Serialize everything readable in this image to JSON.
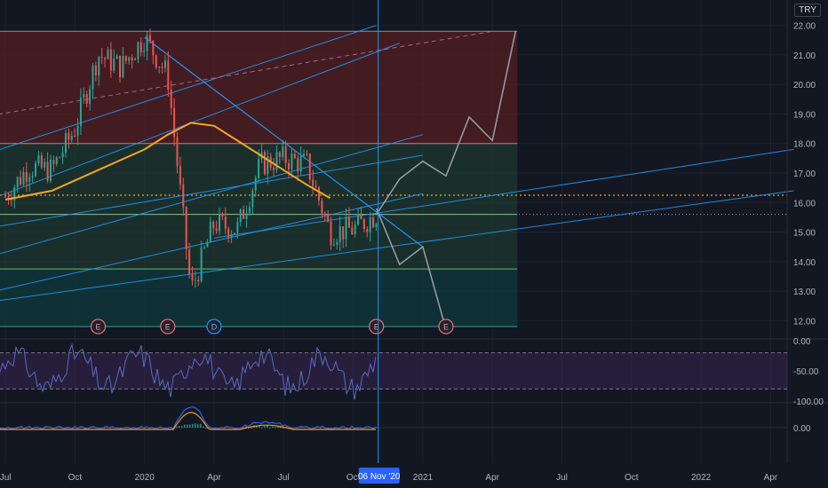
{
  "currency_badge": "TRY",
  "cursor_date_label": "06 Nov '20",
  "colors": {
    "background": "#131722",
    "grid": "#1e222d",
    "candle_up": "#26a69a",
    "candle_down": "#ef5350",
    "ma_line": "#f5a623",
    "trend_line": "#2196f3",
    "rsi_line": "#5c6bc0",
    "macd_line": "#2962ff",
    "signal_line": "#ff9800",
    "zone_red": "#5c1f22",
    "zone_green": "#1e3b2f",
    "zone_teal": "#0e3c3c"
  },
  "chart_data": [
    {
      "type": "candlestick",
      "panel": "price",
      "ylim": [
        11.5,
        22.2
      ],
      "y_ticks": [
        "22.00",
        "21.00",
        "20.00",
        "19.00",
        "18.00",
        "17.00",
        "16.00",
        "15.00",
        "14.00",
        "13.00",
        "12.00"
      ],
      "x_ticks": [
        "Jul",
        "Oct",
        "2020",
        "Apr",
        "Jul",
        "Oct",
        "2021",
        "Apr",
        "Jul",
        "Oct",
        "2022",
        "Apr"
      ],
      "price_path": [
        [
          "2019-07",
          16.2
        ],
        [
          "2019-08",
          17.2
        ],
        [
          "2019-09",
          17.1
        ],
        [
          "2019-10",
          18.5
        ],
        [
          "2019-11",
          21.0
        ],
        [
          "2019-12",
          20.6
        ],
        [
          "2020-01",
          21.6
        ],
        [
          "2020-02",
          20.3
        ],
        [
          "2020-03",
          13.0
        ],
        [
          "2020-04",
          15.3
        ],
        [
          "2020-05",
          15.1
        ],
        [
          "2020-06",
          17.3
        ],
        [
          "2020-07",
          17.5
        ],
        [
          "2020-08",
          17.3
        ],
        [
          "2020-09",
          15.0
        ],
        [
          "2020-10",
          15.1
        ],
        [
          "2020-11",
          15.6
        ]
      ],
      "projection_path": [
        [
          "2020-11",
          15.6
        ],
        [
          "2020-12",
          16.8
        ],
        [
          "2021-01",
          17.4
        ],
        [
          "2021-02",
          16.9
        ],
        [
          "2021-03",
          18.9
        ],
        [
          "2021-04",
          18.1
        ],
        [
          "2021-05",
          21.8
        ]
      ],
      "bearish_projection_path": [
        [
          "2020-11",
          15.8
        ],
        [
          "2020-12",
          13.9
        ],
        [
          "2021-01",
          14.5
        ],
        [
          "2021-02",
          11.7
        ]
      ],
      "horizontal_levels": [
        18.0,
        16.25,
        15.6,
        13.75,
        11.8
      ],
      "event_markers": [
        {
          "label": "E",
          "date": "2019-11"
        },
        {
          "label": "E",
          "date": "2020-02"
        },
        {
          "label": "D",
          "date": "2020-04"
        },
        {
          "label": "E",
          "date": "2020-11"
        },
        {
          "label": "E",
          "date": "2021-02"
        }
      ]
    },
    {
      "type": "line",
      "panel": "rsi",
      "ylim": [
        -100,
        0
      ],
      "y_ticks": [
        "0.00",
        "-50.00",
        "-100.00"
      ],
      "band": [
        -20,
        -80
      ]
    },
    {
      "type": "histogram",
      "panel": "macd",
      "y_ticks": [
        "0.00"
      ]
    }
  ]
}
